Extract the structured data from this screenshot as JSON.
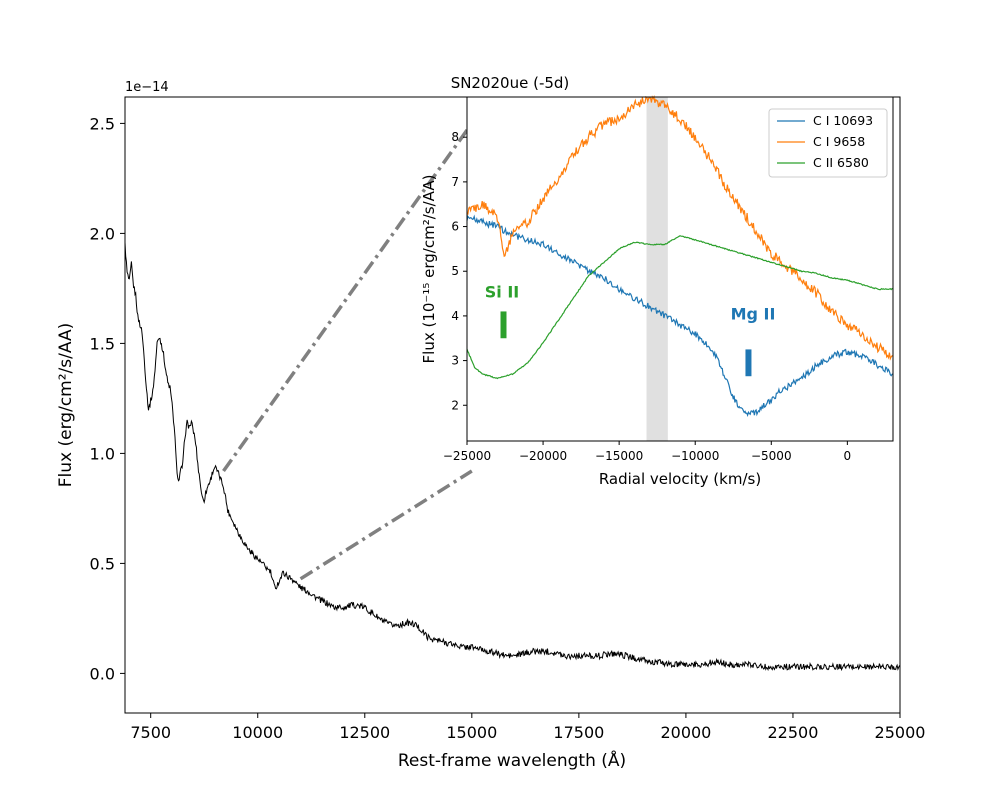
{
  "colors": {
    "c_i_10693": "#1f77b4",
    "c_i_9658": "#ff7f0e",
    "c_ii_6580": "#2ca02c",
    "main_spectrum": "#000000",
    "zoom_lines": "#808080",
    "shaded_band": "#e0e0e0"
  },
  "chart_data": [
    {
      "id": "main",
      "type": "line",
      "title": "",
      "xlabel": "Rest-frame wavelength (Å)",
      "ylabel": "Flux (erg/cm²/s/AA)",
      "y_offset_label": "1e−14",
      "xlim": [
        6900,
        25000
      ],
      "ylim": [
        -0.18,
        2.62
      ],
      "xticks": [
        7500,
        10000,
        12500,
        15000,
        17500,
        20000,
        22500,
        25000
      ],
      "xtick_labels": [
        "7500",
        "10000",
        "12500",
        "15000",
        "17500",
        "20000",
        "22500",
        "25000"
      ],
      "yticks": [
        0.0,
        0.5,
        1.0,
        1.5,
        2.0,
        2.5
      ],
      "ytick_labels": [
        "0.0",
        "0.5",
        "1.0",
        "1.5",
        "2.0",
        "2.5"
      ],
      "series": [
        {
          "name": "SN2020ue spectrum",
          "x": [
            6900,
            6950,
            7000,
            7050,
            7100,
            7150,
            7200,
            7300,
            7400,
            7450,
            7500,
            7550,
            7600,
            7650,
            7700,
            7750,
            7800,
            7850,
            7900,
            7950,
            8000,
            8050,
            8100,
            8150,
            8200,
            8250,
            8300,
            8350,
            8400,
            8450,
            8500,
            8550,
            8600,
            8650,
            8700,
            8750,
            8800,
            8850,
            8900,
            8950,
            9000,
            9100,
            9200,
            9250,
            9300,
            9400,
            9500,
            9600,
            9700,
            9800,
            9900,
            10000,
            10100,
            10200,
            10300,
            10350,
            10400,
            10450,
            10500,
            10550,
            10600,
            10650,
            10700,
            10800,
            10850,
            10900,
            11000,
            11200,
            11400,
            11600,
            11800,
            12000,
            12200,
            12300,
            12500,
            12700,
            12900,
            13100,
            13300,
            13500,
            13700,
            13800,
            13900,
            14000,
            14200,
            14400,
            14600,
            14800,
            15000,
            15200,
            15400,
            15600,
            15800,
            16000,
            16200,
            16400,
            16600,
            16800,
            17000,
            17200,
            17400,
            17600,
            17800,
            18000,
            18200,
            18400,
            18600,
            18800,
            19000,
            19200,
            19400,
            19600,
            19800,
            20000,
            20200,
            20400,
            20600,
            20800,
            21000,
            21200,
            21400,
            21600,
            21800,
            22000,
            22200,
            22400,
            22600,
            22800,
            23000,
            23200,
            23400,
            23600,
            23800,
            24000,
            24200,
            24400,
            24600,
            24800,
            25000
          ],
          "values": [
            1.95,
            1.82,
            1.78,
            1.86,
            1.76,
            1.72,
            1.62,
            1.55,
            1.3,
            1.2,
            1.24,
            1.28,
            1.38,
            1.5,
            1.53,
            1.5,
            1.45,
            1.38,
            1.32,
            1.3,
            1.22,
            1.12,
            0.95,
            0.87,
            0.92,
            0.95,
            1.08,
            1.14,
            1.12,
            1.14,
            1.1,
            1.05,
            0.95,
            0.88,
            0.8,
            0.79,
            0.83,
            0.86,
            0.88,
            0.92,
            0.94,
            0.9,
            0.85,
            0.8,
            0.74,
            0.7,
            0.66,
            0.62,
            0.59,
            0.56,
            0.54,
            0.52,
            0.5,
            0.48,
            0.46,
            0.42,
            0.39,
            0.4,
            0.42,
            0.44,
            0.46,
            0.45,
            0.44,
            0.43,
            0.42,
            0.41,
            0.39,
            0.37,
            0.34,
            0.32,
            0.3,
            0.3,
            0.31,
            0.31,
            0.3,
            0.27,
            0.24,
            0.22,
            0.22,
            0.23,
            0.22,
            0.2,
            0.18,
            0.16,
            0.15,
            0.14,
            0.13,
            0.12,
            0.12,
            0.11,
            0.1,
            0.09,
            0.08,
            0.08,
            0.09,
            0.1,
            0.1,
            0.1,
            0.09,
            0.08,
            0.08,
            0.08,
            0.08,
            0.08,
            0.09,
            0.09,
            0.08,
            0.07,
            0.06,
            0.05,
            0.05,
            0.04,
            0.04,
            0.04,
            0.04,
            0.04,
            0.05,
            0.05,
            0.04,
            0.04,
            0.04,
            0.04,
            0.03,
            0.03,
            0.03,
            0.03,
            0.03,
            0.03,
            0.03,
            0.03,
            0.03,
            0.03,
            0.03,
            0.03,
            0.03,
            0.03,
            0.03,
            0.03,
            0.03
          ]
        }
      ],
      "annotations": [
        {
          "text": "zoom connector to inset (upper)",
          "from": [
            9200,
            0.92
          ],
          "to": [
            15000,
            2.5
          ]
        },
        {
          "text": "zoom connector to inset (lower)",
          "from": [
            11000,
            0.43
          ],
          "to": [
            15000,
            0.92
          ]
        }
      ]
    },
    {
      "id": "inset",
      "type": "line",
      "title": "SN2020ue (-5d)",
      "xlabel": "Radial velocity (km/s)",
      "ylabel": "Flux (10⁻¹⁵ erg/cm²/s/AA)",
      "xlim": [
        -25000,
        3000
      ],
      "ylim": [
        1.2,
        8.9
      ],
      "xticks": [
        -25000,
        -20000,
        -15000,
        -10000,
        -5000,
        0
      ],
      "xtick_labels": [
        "−25000",
        "−20000",
        "−15000",
        "−10000",
        "−5000",
        "0"
      ],
      "yticks": [
        2,
        3,
        4,
        5,
        6,
        7,
        8
      ],
      "ytick_labels": [
        "2",
        "3",
        "4",
        "5",
        "6",
        "7",
        "8"
      ],
      "shaded_band": [
        -13200,
        -11800
      ],
      "legend": {
        "position": "top-right",
        "entries": [
          "C I 10693",
          "C I 9658",
          "C II 6580"
        ]
      },
      "series": [
        {
          "name": "C I 10693",
          "color_key": "c_i_10693",
          "x": [
            -25000,
            -24000,
            -23000,
            -22000,
            -21000,
            -20000,
            -19000,
            -18000,
            -17000,
            -16000,
            -15000,
            -14000,
            -13000,
            -12000,
            -11000,
            -10000,
            -9000,
            -8500,
            -8000,
            -7500,
            -7000,
            -6500,
            -6000,
            -5500,
            -5000,
            -4500,
            -4000,
            -3000,
            -2000,
            -1000,
            0,
            1000,
            2000,
            3000
          ],
          "values": [
            6.2,
            6.1,
            6.0,
            5.8,
            5.7,
            5.6,
            5.4,
            5.2,
            5.0,
            4.85,
            4.6,
            4.4,
            4.2,
            4.0,
            3.8,
            3.6,
            3.3,
            3.0,
            2.6,
            2.2,
            1.9,
            1.8,
            1.85,
            2.0,
            2.1,
            2.3,
            2.4,
            2.6,
            2.9,
            3.1,
            3.2,
            3.1,
            2.9,
            2.7
          ]
        },
        {
          "name": "C I 9658",
          "color_key": "c_i_9658",
          "x": [
            -25000,
            -24000,
            -23000,
            -22500,
            -22000,
            -21000,
            -20000,
            -19000,
            -18000,
            -17000,
            -16000,
            -15000,
            -14000,
            -13000,
            -12000,
            -11000,
            -10000,
            -9000,
            -8000,
            -7000,
            -6000,
            -5000,
            -4000,
            -3000,
            -2000,
            -1000,
            0,
            1000,
            2000,
            3000
          ],
          "values": [
            6.3,
            6.5,
            6.2,
            5.3,
            5.9,
            6.1,
            6.6,
            7.1,
            7.6,
            8.0,
            8.3,
            8.4,
            8.7,
            8.9,
            8.7,
            8.4,
            8.0,
            7.5,
            6.9,
            6.4,
            5.9,
            5.4,
            5.1,
            4.8,
            4.5,
            4.1,
            3.8,
            3.6,
            3.3,
            3.1
          ]
        },
        {
          "name": "C II 6580",
          "color_key": "c_ii_6580",
          "x": [
            -25000,
            -24500,
            -24000,
            -23000,
            -22000,
            -21000,
            -20000,
            -19000,
            -18000,
            -17000,
            -16000,
            -15000,
            -14000,
            -13000,
            -12000,
            -11000,
            -10000,
            -9000,
            -8000,
            -7000,
            -6000,
            -5000,
            -4000,
            -3000,
            -2000,
            -1000,
            0,
            1000,
            2000,
            3000
          ],
          "values": [
            3.25,
            2.85,
            2.7,
            2.6,
            2.7,
            2.95,
            3.4,
            3.9,
            4.4,
            4.9,
            5.2,
            5.5,
            5.65,
            5.6,
            5.6,
            5.8,
            5.7,
            5.6,
            5.5,
            5.4,
            5.3,
            5.2,
            5.1,
            5.0,
            4.95,
            4.85,
            4.8,
            4.7,
            4.6,
            4.6
          ]
        }
      ],
      "annotations": [
        {
          "text": "Si II",
          "color_key": "c_ii_6580",
          "x": -22700,
          "y": 4.55,
          "marker_x": -22600,
          "marker_y": [
            3.5,
            4.1
          ]
        },
        {
          "text": "Mg II",
          "color_key": "c_i_10693",
          "x": -6200,
          "y": 4.05,
          "marker_x": -6500,
          "marker_y": [
            2.65,
            3.25
          ]
        }
      ]
    }
  ]
}
